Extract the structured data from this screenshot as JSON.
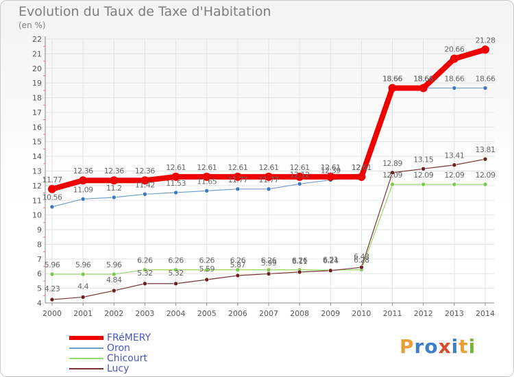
{
  "header": {
    "title": "Evolution du Taux de Taxe d'Habitation",
    "subtitle": "(en %)"
  },
  "logo": {
    "text": "Proxiti",
    "letters": [
      "P",
      "r",
      "o",
      "x",
      "i",
      "t",
      "i"
    ],
    "colors": [
      "#e8a13a",
      "#3f7fc9",
      "#3f7fc9",
      "#d84a2a",
      "#3f7fc9",
      "#e8a13a",
      "#7bb23c"
    ]
  },
  "chart_data": {
    "type": "line",
    "x": [
      2000,
      2001,
      2002,
      2003,
      2004,
      2005,
      2006,
      2007,
      2008,
      2009,
      2010,
      2011,
      2012,
      2013,
      2014
    ],
    "xlabel": "",
    "ylabel": "",
    "ylim": [
      4,
      22
    ],
    "yticks": [
      4,
      5,
      6,
      7,
      8,
      9,
      10,
      11,
      12,
      13,
      14,
      15,
      16,
      17,
      18,
      19,
      20,
      21,
      22
    ],
    "grid": true,
    "legend_position": "bottom-left",
    "series": [
      {
        "name": "Oron",
        "color": "#6f9fd0",
        "marker": "#3d78c0",
        "values": [
          10.56,
          11.09,
          11.2,
          11.42,
          11.53,
          11.65,
          11.77,
          11.77,
          12.12,
          12.39,
          12.61,
          18.66,
          18.66,
          18.66,
          18.66
        ],
        "labels": [
          "10.56",
          "11.09",
          "11.2",
          "11.42",
          "11.53",
          "11.65",
          "11.77",
          "11.77",
          "12.12",
          "12.39",
          "12.61",
          "18.66",
          "18.66",
          "18.66",
          "18.66"
        ]
      },
      {
        "name": "Chicourt",
        "color": "#93d86b",
        "marker": "#7bc94a",
        "values": [
          5.96,
          5.96,
          5.96,
          6.26,
          6.26,
          6.26,
          6.26,
          6.26,
          6.26,
          6.24,
          6.28,
          12.09,
          12.09,
          12.09,
          12.09
        ],
        "labels": [
          "5.96",
          "5.96",
          "5.96",
          "6.26",
          "6.26",
          "6.26",
          "6.26",
          "6.26",
          "6.26",
          "6.24",
          "6.28",
          "12.09",
          "12.09",
          "12.09",
          "12.09"
        ]
      },
      {
        "name": "Lucy",
        "color": "#7a3434",
        "marker": "#6b1f1f",
        "values": [
          4.23,
          4.4,
          4.84,
          5.32,
          5.32,
          5.59,
          5.87,
          5.99,
          6.11,
          6.21,
          6.43,
          12.89,
          13.15,
          13.41,
          13.81
        ],
        "labels": [
          "4.23",
          "4.4",
          "4.84",
          "5.32",
          "5.32",
          "5.59",
          "5.87",
          "5.99",
          "6.11",
          "6.21",
          "6.43",
          "12.89",
          "13.15",
          "13.41",
          "13.81"
        ]
      },
      {
        "name": "FRéMERY",
        "color": "#ee0000",
        "marker": "#ee0000",
        "values": [
          11.77,
          12.36,
          12.36,
          12.36,
          12.61,
          12.61,
          12.61,
          12.61,
          12.61,
          12.61,
          12.61,
          18.66,
          18.66,
          20.66,
          21.28
        ],
        "labels": [
          "11.77",
          "12.36",
          "12.36",
          "12.36",
          "12.61",
          "12.61",
          "12.61",
          "12.61",
          "12.61",
          "12.61",
          "12.61",
          "18.66",
          "18.66",
          "20.66",
          "21.28"
        ]
      }
    ]
  },
  "legend": [
    {
      "name": "FRéMERY",
      "color": "#ee0000"
    },
    {
      "name": "Oron",
      "color": "#6f9fd0"
    },
    {
      "name": "Chicourt",
      "color": "#93d86b"
    },
    {
      "name": "Lucy",
      "color": "#7a3434"
    }
  ]
}
